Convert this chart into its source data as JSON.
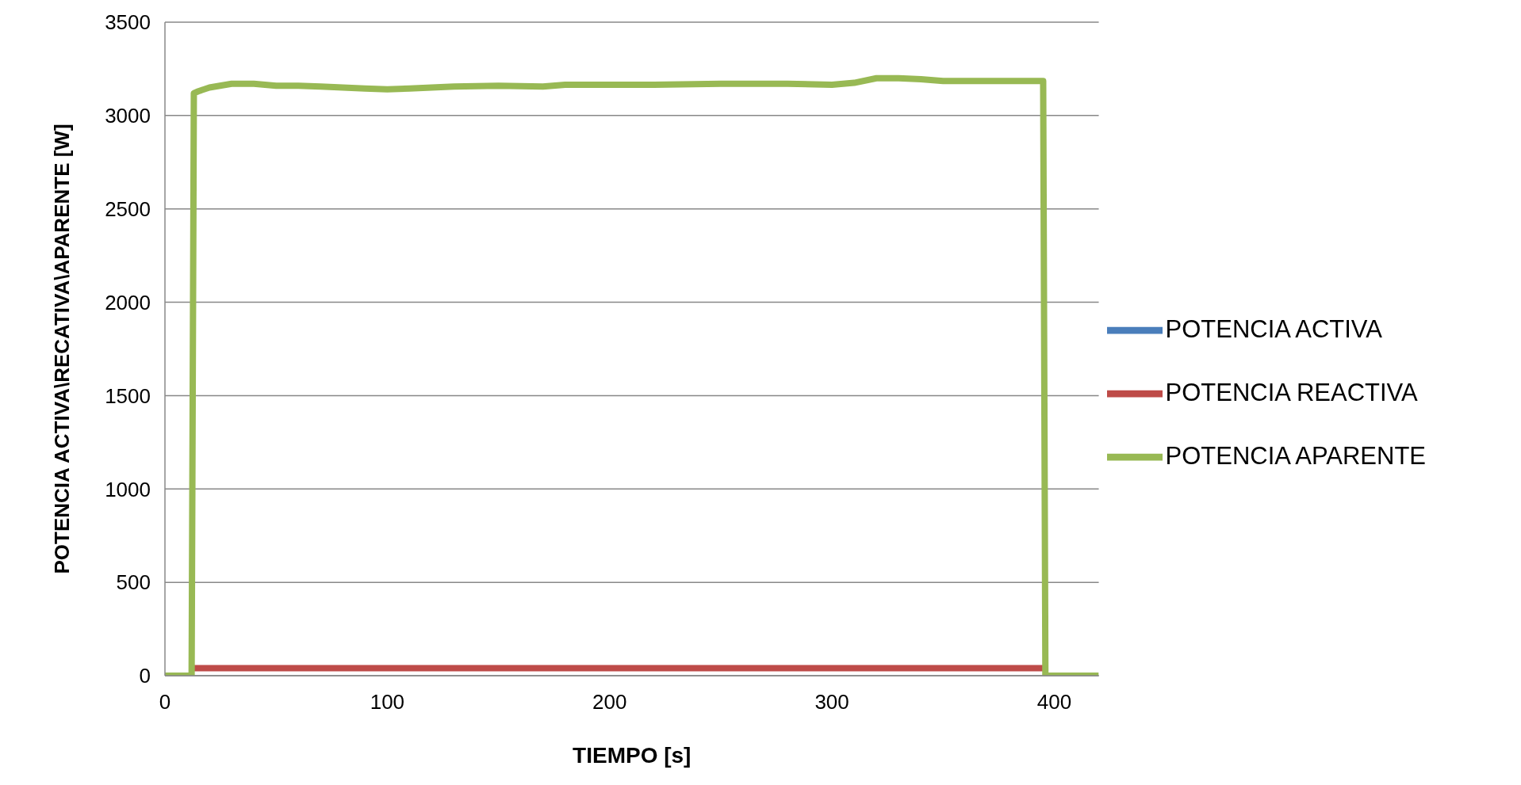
{
  "chart_data": {
    "type": "line",
    "xlabel": "TIEMPO [s]",
    "ylabel": "POTENCIA ACTIVA\\RECATIVA\\APARENTE [W]",
    "xlim": [
      0,
      420
    ],
    "xticks": [
      0,
      100,
      200,
      300,
      400
    ],
    "ylim": [
      0,
      3500
    ],
    "yticks": [
      0,
      500,
      1000,
      1500,
      2000,
      2500,
      3000,
      3500
    ],
    "grid": "y",
    "legend": "right",
    "marker": "none",
    "line_style": "solid",
    "series": [
      {
        "name": "POTENCIA ACTIVA",
        "color": "#4a7ebb"
      },
      {
        "name": "POTENCIA REACTIVA",
        "color": "#be4b48",
        "x": [
          13,
          50,
          100,
          150,
          200,
          250,
          300,
          350,
          395
        ],
        "values": [
          40,
          40,
          40,
          40,
          40,
          40,
          40,
          40,
          40
        ]
      },
      {
        "name": "POTENCIA APARENTE",
        "color": "#98b954",
        "x": [
          0,
          12,
          13,
          15,
          20,
          30,
          40,
          50,
          60,
          70,
          80,
          90,
          100,
          110,
          120,
          130,
          150,
          170,
          180,
          200,
          220,
          250,
          280,
          300,
          310,
          320,
          330,
          340,
          350,
          370,
          395,
          396,
          420
        ],
        "values": [
          0,
          0,
          3120,
          3130,
          3150,
          3170,
          3170,
          3160,
          3160,
          3155,
          3150,
          3145,
          3140,
          3145,
          3150,
          3155,
          3160,
          3155,
          3165,
          3165,
          3165,
          3170,
          3170,
          3165,
          3175,
          3200,
          3200,
          3195,
          3185,
          3185,
          3185,
          0,
          0
        ]
      }
    ]
  }
}
